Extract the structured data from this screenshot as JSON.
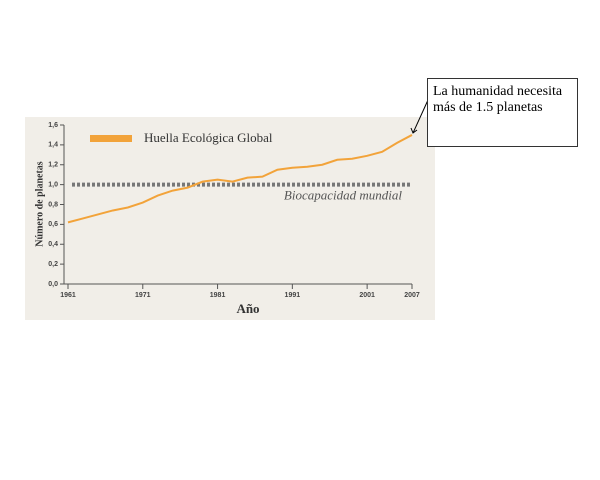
{
  "chart_data": {
    "type": "line",
    "x": [
      1961,
      1963,
      1965,
      1967,
      1969,
      1971,
      1973,
      1975,
      1977,
      1979,
      1981,
      1983,
      1985,
      1987,
      1989,
      1991,
      1993,
      1995,
      1997,
      1999,
      2001,
      2003,
      2005,
      2007
    ],
    "series": [
      {
        "name": "Huella Ecológica Global",
        "color": "#f2a33a",
        "values": [
          0.62,
          0.66,
          0.7,
          0.74,
          0.77,
          0.82,
          0.89,
          0.94,
          0.97,
          1.03,
          1.05,
          1.03,
          1.07,
          1.08,
          1.15,
          1.17,
          1.18,
          1.2,
          1.25,
          1.26,
          1.29,
          1.33,
          1.42,
          1.5
        ]
      }
    ],
    "xlim": [
      1961,
      2007
    ],
    "xticks": [
      1961,
      1971,
      1981,
      1991,
      2001,
      2007
    ],
    "ylim": [
      0,
      1.6
    ],
    "yticks": [
      {
        "value": 0,
        "label": "0,0"
      },
      {
        "value": 0.2,
        "label": "0,2"
      },
      {
        "value": 0.4,
        "label": "0,4"
      },
      {
        "value": 0.6,
        "label": "0,6"
      },
      {
        "value": 0.8,
        "label": "0,8"
      },
      {
        "value": 1.0,
        "label": "1,0"
      },
      {
        "value": 1.2,
        "label": "1,2"
      },
      {
        "value": 1.4,
        "label": "1,4"
      },
      {
        "value": 1.6,
        "label": "1,6"
      }
    ],
    "reference_line": {
      "value": 1.0,
      "label": "Biocapacidad mundial",
      "color": "#777777"
    },
    "xlabel": "Año",
    "ylabel": "Número de planetas",
    "annotation": "La humanidad necesita más de 1.5 planetas"
  }
}
